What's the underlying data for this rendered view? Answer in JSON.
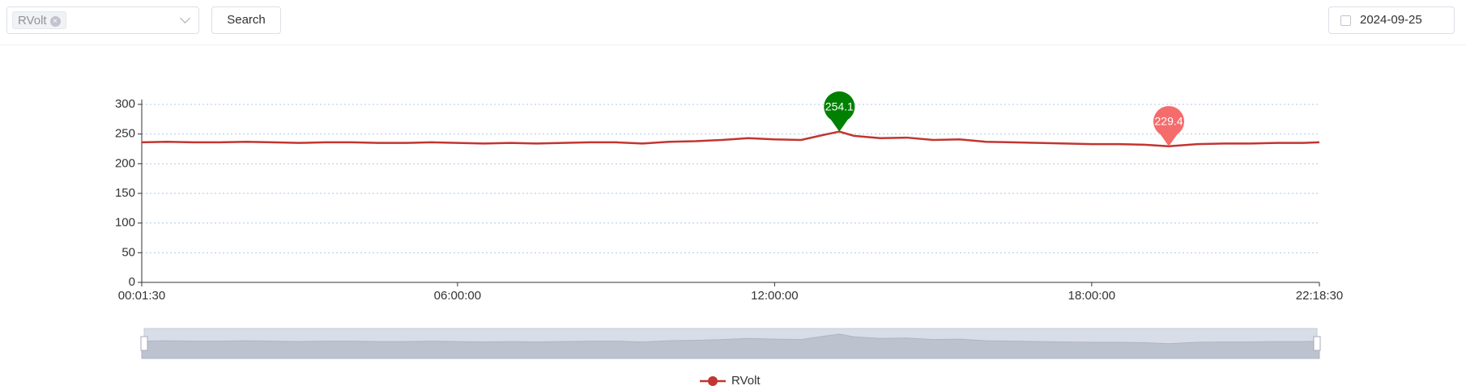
{
  "toolbar": {
    "selected_tag": "RVolt",
    "search_button": "Search",
    "date": "2024-09-25"
  },
  "chart_data": {
    "type": "line",
    "x": [
      "00:01:30",
      "00:30:00",
      "01:00:00",
      "01:30:00",
      "02:00:00",
      "02:30:00",
      "03:00:00",
      "03:30:00",
      "04:00:00",
      "04:30:00",
      "05:00:00",
      "05:30:00",
      "06:00:00",
      "06:30:00",
      "07:00:00",
      "07:30:00",
      "08:00:00",
      "08:30:00",
      "09:00:00",
      "09:30:00",
      "10:00:00",
      "10:30:00",
      "11:00:00",
      "11:30:00",
      "12:00:00",
      "12:30:00",
      "13:00:00",
      "13:13:30",
      "13:30:00",
      "14:00:00",
      "14:30:00",
      "15:00:00",
      "15:30:00",
      "16:00:00",
      "16:30:00",
      "17:00:00",
      "17:30:00",
      "18:00:00",
      "18:30:00",
      "19:00:00",
      "19:27:30",
      "20:00:00",
      "20:30:00",
      "21:00:00",
      "21:30:00",
      "22:00:00",
      "22:18:30"
    ],
    "series": [
      {
        "name": "RVolt",
        "color": "#c23531",
        "values": [
          236,
          237,
          236,
          236,
          237,
          236,
          235,
          236,
          236,
          235,
          235,
          236,
          235,
          234,
          235,
          234,
          235,
          236,
          236,
          234,
          237,
          238,
          240,
          243,
          241,
          240,
          250,
          254.1,
          247,
          243,
          244,
          240,
          241,
          237,
          236,
          235,
          234,
          233,
          233,
          232,
          229.4,
          233,
          234,
          234,
          235,
          235,
          236
        ]
      }
    ],
    "mark_points": [
      {
        "x": "13:13:30",
        "value": 254.1,
        "color": "#008000"
      },
      {
        "x": "19:27:30",
        "value": 229.4,
        "color": "#f56c6c"
      }
    ],
    "xlim": [
      "00:01:30",
      "22:18:30"
    ],
    "xticks": [
      "00:01:30",
      "06:00:00",
      "12:00:00",
      "18:00:00",
      "22:18:30"
    ],
    "ylim": [
      0,
      300
    ],
    "yticks": [
      0,
      50,
      100,
      150,
      200,
      250,
      300
    ],
    "grid": true
  }
}
